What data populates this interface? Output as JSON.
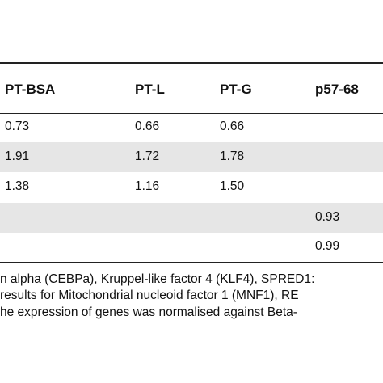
{
  "table": {
    "columns": [
      "PT-BSA",
      "PT-L",
      "PT-G",
      "p57-68"
    ],
    "rows": [
      {
        "values": [
          "0.73",
          "0.66",
          "0.66",
          ""
        ]
      },
      {
        "values": [
          "1.91",
          "1.72",
          "1.78",
          ""
        ]
      },
      {
        "values": [
          "1.38",
          "1.16",
          "1.50",
          ""
        ]
      },
      {
        "values": [
          "",
          "",
          "",
          "0.93"
        ]
      },
      {
        "values": [
          "",
          "",
          "",
          "0.99"
        ]
      }
    ]
  },
  "footnotes": [
    "n alpha (CEBPa), Kruppel-like factor 4 (KLF4), SPRED1:",
    "results for Mitochondrial nucleoid factor 1 (MNF1), RE",
    "he expression of genes was normalised against Beta-"
  ]
}
